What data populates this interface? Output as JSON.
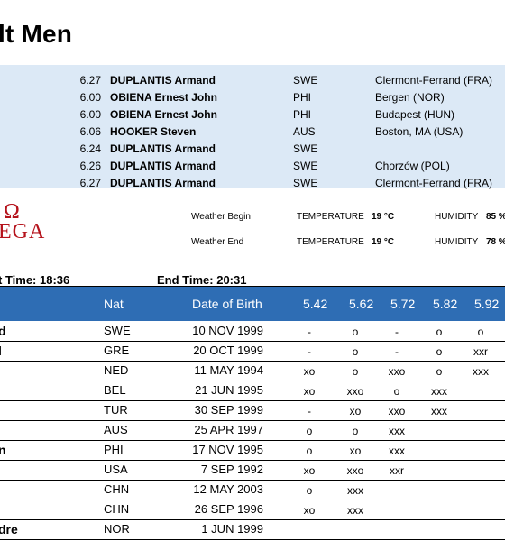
{
  "title": "lt Men",
  "records": [
    {
      "mark": "6.27",
      "name": "DUPLANTIS Armand",
      "nat": "SWE",
      "venue": "Clermont-Ferrand (FRA)"
    },
    {
      "mark": "6.00",
      "name": "OBIENA Ernest John",
      "nat": "PHI",
      "venue": "Bergen (NOR)"
    },
    {
      "mark": "6.00",
      "name": "OBIENA Ernest John",
      "nat": "PHI",
      "venue": "Budapest (HUN)"
    },
    {
      "mark": "6.06",
      "name": "HOOKER Steven",
      "nat": "AUS",
      "venue": "Boston, MA (USA)"
    },
    {
      "mark": "6.24",
      "name": "DUPLANTIS Armand",
      "nat": "SWE",
      "venue": ""
    },
    {
      "mark": "6.26",
      "name": "DUPLANTIS Armand",
      "nat": "SWE",
      "venue": "Chorzów (POL)"
    },
    {
      "mark": "6.27",
      "name": "DUPLANTIS Armand",
      "nat": "SWE",
      "venue": "Clermont-Ferrand (FRA)"
    }
  ],
  "logo": {
    "line1": "Ω",
    "line2": "EGA"
  },
  "weather": {
    "begin_label": "Weather Begin",
    "end_label": "Weather End",
    "temp_label": "TEMPERATURE",
    "hum_label": "HUMIDITY",
    "begin_temp": "19 °C",
    "begin_hum": "85 %",
    "end_temp": "19 °C",
    "end_hum": "78 %"
  },
  "times": {
    "start": "t Time: 18:36",
    "end": "End Time: 20:31"
  },
  "table": {
    "headers": {
      "nat": "Nat",
      "dob": "Date of Birth",
      "heights": [
        "5.42",
        "5.62",
        "5.72",
        "5.82",
        "5.92"
      ]
    },
    "rows": [
      {
        "name": "d",
        "nat": "SWE",
        "dob": "10 NOV 1999",
        "h": [
          "-",
          "o",
          "-",
          "o",
          "o"
        ]
      },
      {
        "name": "l",
        "nat": "GRE",
        "dob": "20 OCT 1999",
        "h": [
          "-",
          "o",
          "-",
          "o",
          "xxr"
        ]
      },
      {
        "name": "",
        "nat": "NED",
        "dob": "11 MAY 1994",
        "h": [
          "xo",
          "o",
          "xxo",
          "o",
          "xxx"
        ]
      },
      {
        "name": "",
        "nat": "BEL",
        "dob": "21 JUN 1995",
        "h": [
          "xo",
          "xxo",
          "o",
          "xxx",
          ""
        ]
      },
      {
        "name": "",
        "nat": "TUR",
        "dob": "30 SEP 1999",
        "h": [
          "-",
          "xo",
          "xxo",
          "xxx",
          ""
        ]
      },
      {
        "name": "",
        "nat": "AUS",
        "dob": "25 APR 1997",
        "h": [
          "o",
          "o",
          "xxx",
          "",
          ""
        ]
      },
      {
        "name": "n",
        "nat": "PHI",
        "dob": "17 NOV 1995",
        "h": [
          "o",
          "xo",
          "xxx",
          "",
          ""
        ]
      },
      {
        "name": "",
        "nat": "USA",
        "dob": "7 SEP 1992",
        "h": [
          "xo",
          "xxo",
          "xxr",
          "",
          ""
        ]
      },
      {
        "name": "",
        "nat": "CHN",
        "dob": "12 MAY 2003",
        "h": [
          "o",
          "xxx",
          "",
          "",
          ""
        ]
      },
      {
        "name": "",
        "nat": "CHN",
        "dob": "26 SEP 1996",
        "h": [
          "xo",
          "xxx",
          "",
          "",
          ""
        ]
      },
      {
        "name": "dre",
        "nat": "NOR",
        "dob": "1 JUN 1999",
        "h": [
          "",
          "",
          "",
          "",
          ""
        ]
      }
    ]
  }
}
